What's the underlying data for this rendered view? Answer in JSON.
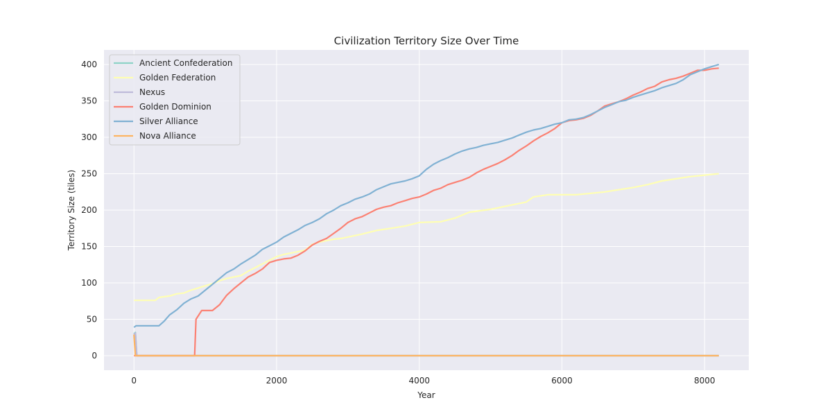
{
  "chart_data": {
    "type": "line",
    "title": "Civilization Territory Size Over Time",
    "xlabel": "Year",
    "ylabel": "Territory Size (tiles)",
    "xlim": [
      -420,
      8620
    ],
    "ylim": [
      -20,
      420
    ],
    "xticks": [
      0,
      2000,
      4000,
      6000,
      8000
    ],
    "yticks": [
      0,
      50,
      100,
      150,
      200,
      250,
      300,
      350,
      400
    ],
    "grid": true,
    "legend_position": "top-left",
    "series": [
      {
        "name": "Ancient Confederation",
        "color": "#8dd3c7",
        "points": [
          [
            0,
            30
          ],
          [
            20,
            32
          ],
          [
            40,
            0
          ],
          [
            8200,
            0
          ]
        ]
      },
      {
        "name": "Golden Federation",
        "color": "#ffffb3",
        "points": [
          [
            0,
            76
          ],
          [
            300,
            76
          ],
          [
            350,
            80
          ],
          [
            500,
            82
          ],
          [
            600,
            85
          ],
          [
            700,
            86
          ],
          [
            800,
            90
          ],
          [
            900,
            93
          ],
          [
            1000,
            96
          ],
          [
            1100,
            99
          ],
          [
            1200,
            103
          ],
          [
            1300,
            106
          ],
          [
            1400,
            108
          ],
          [
            1500,
            110
          ],
          [
            1600,
            116
          ],
          [
            1700,
            121
          ],
          [
            1800,
            126
          ],
          [
            1900,
            131
          ],
          [
            2000,
            136
          ],
          [
            2100,
            139
          ],
          [
            2200,
            141
          ],
          [
            2300,
            143
          ],
          [
            2400,
            145
          ],
          [
            2500,
            153
          ],
          [
            2600,
            156
          ],
          [
            2700,
            158
          ],
          [
            2800,
            160
          ],
          [
            2900,
            161
          ],
          [
            3000,
            163
          ],
          [
            3200,
            167
          ],
          [
            3400,
            172
          ],
          [
            3600,
            175
          ],
          [
            3800,
            178
          ],
          [
            4000,
            183
          ],
          [
            4300,
            184
          ],
          [
            4500,
            189
          ],
          [
            4700,
            197
          ],
          [
            5000,
            201
          ],
          [
            5300,
            207
          ],
          [
            5500,
            211
          ],
          [
            5600,
            218
          ],
          [
            5800,
            221
          ],
          [
            6200,
            221
          ],
          [
            6400,
            223
          ],
          [
            6600,
            225
          ],
          [
            6800,
            228
          ],
          [
            7000,
            231
          ],
          [
            7200,
            235
          ],
          [
            7400,
            240
          ],
          [
            7600,
            243
          ],
          [
            7800,
            246
          ],
          [
            8000,
            248
          ],
          [
            8200,
            250
          ]
        ]
      },
      {
        "name": "Nexus",
        "color": "#bebada",
        "points": [
          [
            0,
            29
          ],
          [
            20,
            31
          ],
          [
            40,
            0
          ],
          [
            8200,
            0
          ]
        ]
      },
      {
        "name": "Golden Dominion",
        "color": "#fb8072",
        "points": [
          [
            0,
            0
          ],
          [
            850,
            0
          ],
          [
            870,
            50
          ],
          [
            950,
            62
          ],
          [
            1100,
            62
          ],
          [
            1200,
            70
          ],
          [
            1300,
            83
          ],
          [
            1400,
            92
          ],
          [
            1500,
            100
          ],
          [
            1600,
            108
          ],
          [
            1700,
            113
          ],
          [
            1800,
            119
          ],
          [
            1900,
            128
          ],
          [
            2000,
            131
          ],
          [
            2100,
            133
          ],
          [
            2200,
            134
          ],
          [
            2300,
            138
          ],
          [
            2400,
            144
          ],
          [
            2500,
            152
          ],
          [
            2600,
            157
          ],
          [
            2700,
            161
          ],
          [
            2800,
            168
          ],
          [
            2900,
            175
          ],
          [
            3000,
            183
          ],
          [
            3100,
            188
          ],
          [
            3200,
            191
          ],
          [
            3300,
            196
          ],
          [
            3400,
            201
          ],
          [
            3500,
            204
          ],
          [
            3600,
            206
          ],
          [
            3700,
            210
          ],
          [
            3800,
            213
          ],
          [
            3900,
            216
          ],
          [
            4000,
            218
          ],
          [
            4100,
            222
          ],
          [
            4200,
            227
          ],
          [
            4300,
            230
          ],
          [
            4400,
            235
          ],
          [
            4500,
            238
          ],
          [
            4600,
            241
          ],
          [
            4700,
            245
          ],
          [
            4800,
            251
          ],
          [
            4900,
            256
          ],
          [
            5000,
            260
          ],
          [
            5100,
            264
          ],
          [
            5200,
            269
          ],
          [
            5300,
            275
          ],
          [
            5400,
            282
          ],
          [
            5500,
            288
          ],
          [
            5600,
            295
          ],
          [
            5700,
            301
          ],
          [
            5800,
            306
          ],
          [
            5900,
            312
          ],
          [
            6000,
            320
          ],
          [
            6100,
            323
          ],
          [
            6200,
            324
          ],
          [
            6300,
            326
          ],
          [
            6400,
            330
          ],
          [
            6500,
            336
          ],
          [
            6600,
            343
          ],
          [
            6700,
            346
          ],
          [
            6800,
            349
          ],
          [
            6900,
            353
          ],
          [
            7000,
            358
          ],
          [
            7100,
            362
          ],
          [
            7200,
            367
          ],
          [
            7300,
            370
          ],
          [
            7400,
            376
          ],
          [
            7500,
            379
          ],
          [
            7600,
            381
          ],
          [
            7700,
            384
          ],
          [
            7800,
            388
          ],
          [
            7900,
            392
          ],
          [
            8000,
            392
          ],
          [
            8100,
            394
          ],
          [
            8200,
            395
          ]
        ]
      },
      {
        "name": "Silver Alliance",
        "color": "#80b1d3",
        "points": [
          [
            0,
            39
          ],
          [
            30,
            41
          ],
          [
            350,
            41
          ],
          [
            420,
            47
          ],
          [
            500,
            56
          ],
          [
            600,
            63
          ],
          [
            700,
            72
          ],
          [
            800,
            78
          ],
          [
            900,
            82
          ],
          [
            1000,
            90
          ],
          [
            1100,
            98
          ],
          [
            1200,
            106
          ],
          [
            1300,
            114
          ],
          [
            1400,
            119
          ],
          [
            1500,
            126
          ],
          [
            1600,
            132
          ],
          [
            1700,
            138
          ],
          [
            1800,
            146
          ],
          [
            1900,
            151
          ],
          [
            2000,
            156
          ],
          [
            2100,
            163
          ],
          [
            2200,
            168
          ],
          [
            2300,
            173
          ],
          [
            2400,
            179
          ],
          [
            2500,
            183
          ],
          [
            2600,
            188
          ],
          [
            2700,
            195
          ],
          [
            2800,
            200
          ],
          [
            2900,
            206
          ],
          [
            3000,
            210
          ],
          [
            3100,
            215
          ],
          [
            3200,
            218
          ],
          [
            3300,
            222
          ],
          [
            3400,
            228
          ],
          [
            3500,
            232
          ],
          [
            3600,
            236
          ],
          [
            3700,
            238
          ],
          [
            3800,
            240
          ],
          [
            3900,
            243
          ],
          [
            4000,
            247
          ],
          [
            4100,
            256
          ],
          [
            4200,
            263
          ],
          [
            4300,
            268
          ],
          [
            4400,
            272
          ],
          [
            4500,
            277
          ],
          [
            4600,
            281
          ],
          [
            4700,
            284
          ],
          [
            4800,
            286
          ],
          [
            4900,
            289
          ],
          [
            5000,
            291
          ],
          [
            5100,
            293
          ],
          [
            5200,
            296
          ],
          [
            5300,
            299
          ],
          [
            5400,
            303
          ],
          [
            5500,
            307
          ],
          [
            5600,
            310
          ],
          [
            5700,
            312
          ],
          [
            5800,
            315
          ],
          [
            5900,
            318
          ],
          [
            6000,
            320
          ],
          [
            6100,
            324
          ],
          [
            6200,
            325
          ],
          [
            6300,
            327
          ],
          [
            6400,
            331
          ],
          [
            6500,
            336
          ],
          [
            6600,
            341
          ],
          [
            6700,
            345
          ],
          [
            6800,
            349
          ],
          [
            6900,
            351
          ],
          [
            7000,
            355
          ],
          [
            7100,
            358
          ],
          [
            7200,
            361
          ],
          [
            7300,
            364
          ],
          [
            7400,
            368
          ],
          [
            7500,
            371
          ],
          [
            7600,
            374
          ],
          [
            7700,
            379
          ],
          [
            7800,
            386
          ],
          [
            7900,
            390
          ],
          [
            8000,
            394
          ],
          [
            8100,
            397
          ],
          [
            8200,
            400
          ]
        ]
      },
      {
        "name": "Nova Alliance",
        "color": "#fdb462",
        "points": [
          [
            0,
            29
          ],
          [
            20,
            0
          ],
          [
            8200,
            0
          ]
        ]
      }
    ]
  }
}
